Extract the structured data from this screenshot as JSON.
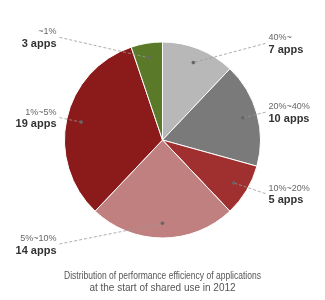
{
  "chart_data": {
    "type": "pie",
    "title": "Distribution of performance efficiency of applications\nat the start of shared use in 2012",
    "categories": [
      "40%~",
      "20%~40%",
      "10%~20%",
      "5%~10%",
      "1%~5%",
      "~1%"
    ],
    "values": [
      7,
      10,
      5,
      14,
      19,
      3
    ],
    "value_labels": [
      "7 apps",
      "10 apps",
      "5 apps",
      "14 apps",
      "19 apps",
      "3 apps"
    ],
    "colors": [
      "#b8b8b8",
      "#7a7a7a",
      "#a03030",
      "#c08080",
      "#8b1a1a",
      "#5a7a2a"
    ],
    "data_labels": true
  }
}
